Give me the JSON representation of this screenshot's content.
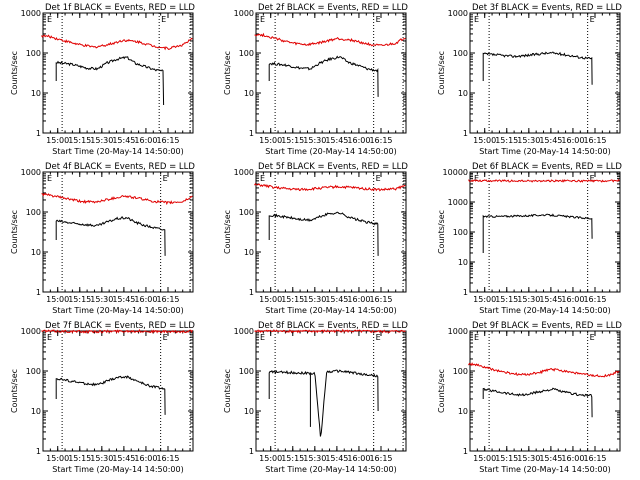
{
  "chart_data": [
    {
      "type": "line",
      "title": "Det 1f BLACK = Events, RED = LLD",
      "xlabel": "Start Time (20-May-14 14:50:00)",
      "ylabel": "Counts/sec",
      "yscale": "log",
      "ylim": [
        1,
        1000
      ],
      "xlim": [
        "14:50",
        "16:32"
      ],
      "x_ticks": [
        "15:00",
        "15:15",
        "15:30",
        "15:45",
        "16:00",
        "16:15"
      ],
      "y_ticks": [
        "1",
        "10",
        "100",
        "1000"
      ],
      "markers": [
        "E",
        "E"
      ],
      "vlines_dotted": [
        "15:03",
        "16:09",
        "16:30"
      ],
      "colors": {
        "events": "#000000",
        "lld": "#e00000"
      },
      "series": [
        {
          "name": "BLACK = Events",
          "color": "#000000",
          "x": [
            "14:59",
            "15:10",
            "15:20",
            "15:27",
            "15:33",
            "15:40",
            "15:47",
            "15:53",
            "16:00",
            "16:06",
            "16:12"
          ],
          "values": [
            58,
            52,
            42,
            40,
            55,
            70,
            78,
            55,
            45,
            38,
            35
          ],
          "dropout": {
            "x": "16:12",
            "value": 5
          }
        },
        {
          "name": "RED = LLD",
          "color": "#e00000",
          "x": [
            "14:49",
            "14:55",
            "15:05",
            "15:15",
            "15:25",
            "15:35",
            "15:45",
            "15:55",
            "16:05",
            "16:15",
            "16:25",
            "16:32"
          ],
          "values": [
            270,
            255,
            200,
            160,
            140,
            165,
            210,
            190,
            150,
            130,
            160,
            230
          ]
        }
      ]
    },
    {
      "type": "line",
      "title": "Det 2f BLACK = Events, RED = LLD",
      "xlabel": "Start Time (20-May-14 14:50:00)",
      "ylabel": "Counts/sec",
      "yscale": "log",
      "ylim": [
        1,
        1000
      ],
      "xlim": [
        "14:50",
        "16:32"
      ],
      "x_ticks": [
        "15:00",
        "15:15",
        "15:30",
        "15:45",
        "16:00",
        "16:15"
      ],
      "y_ticks": [
        "1",
        "10",
        "100",
        "1000"
      ],
      "markers": [
        "E",
        "E"
      ],
      "vlines_dotted": [
        "15:03",
        "16:10",
        "16:30"
      ],
      "colors": {
        "events": "#000000",
        "lld": "#e00000"
      },
      "series": [
        {
          "name": "BLACK = Events",
          "color": "#000000",
          "x": [
            "14:59",
            "15:10",
            "15:20",
            "15:27",
            "15:33",
            "15:40",
            "15:47",
            "15:53",
            "16:00",
            "16:06",
            "16:13"
          ],
          "values": [
            55,
            50,
            42,
            40,
            55,
            70,
            80,
            58,
            48,
            40,
            36
          ],
          "dropout": {
            "x": "16:13",
            "value": 8
          }
        },
        {
          "name": "RED = LLD",
          "color": "#e00000",
          "x": [
            "14:49",
            "14:55",
            "15:05",
            "15:15",
            "15:25",
            "15:35",
            "15:45",
            "15:55",
            "16:05",
            "16:15",
            "16:25",
            "16:32"
          ],
          "values": [
            290,
            280,
            220,
            175,
            160,
            185,
            230,
            210,
            170,
            150,
            175,
            250
          ]
        }
      ]
    },
    {
      "type": "line",
      "title": "Det 3f BLACK = Events, RED = LLD",
      "xlabel": "Start Time (20-May-14 14:50:00)",
      "ylabel": "Counts/sec",
      "yscale": "log",
      "ylim": [
        1,
        1000
      ],
      "xlim": [
        "14:50",
        "16:32"
      ],
      "x_ticks": [
        "15:00",
        "15:15",
        "15:30",
        "15:45",
        "16:00",
        "16:15"
      ],
      "y_ticks": [
        "1",
        "10",
        "100",
        "1000"
      ],
      "markers": [
        "E",
        "E"
      ],
      "vlines_dotted": [
        "15:03",
        "16:10",
        "16:30"
      ],
      "colors": {
        "events": "#000000",
        "lld": "#e00000"
      },
      "series": [
        {
          "name": "BLACK = Events",
          "color": "#000000",
          "x": [
            "14:59",
            "15:10",
            "15:20",
            "15:30",
            "15:40",
            "15:47",
            "15:55",
            "16:05",
            "16:13"
          ],
          "values": [
            95,
            88,
            82,
            88,
            98,
            100,
            90,
            78,
            72
          ],
          "dropout": {
            "x": "16:13",
            "value": 16
          }
        }
      ]
    },
    {
      "type": "line",
      "title": "Det 4f BLACK = Events, RED = LLD",
      "xlabel": "Start Time (20-May-14 14:50:00)",
      "ylabel": "Counts/sec",
      "yscale": "log",
      "ylim": [
        1,
        1000
      ],
      "xlim": [
        "14:50",
        "16:32"
      ],
      "x_ticks": [
        "15:00",
        "15:15",
        "15:30",
        "15:45",
        "16:00",
        "16:15"
      ],
      "y_ticks": [
        "1",
        "10",
        "100",
        "1000"
      ],
      "markers": [
        "E",
        "E"
      ],
      "vlines_dotted": [
        "15:03",
        "16:10",
        "16:30"
      ],
      "colors": {
        "events": "#000000",
        "lld": "#e00000"
      },
      "series": [
        {
          "name": "BLACK = Events",
          "color": "#000000",
          "x": [
            "14:59",
            "15:10",
            "15:20",
            "15:27",
            "15:33",
            "15:40",
            "15:47",
            "15:53",
            "16:00",
            "16:06",
            "16:13"
          ],
          "values": [
            60,
            52,
            48,
            45,
            55,
            68,
            72,
            55,
            45,
            40,
            35
          ],
          "dropout": {
            "x": "16:13",
            "value": 8
          }
        },
        {
          "name": "RED = LLD",
          "color": "#e00000",
          "x": [
            "14:49",
            "14:55",
            "15:05",
            "15:15",
            "15:25",
            "15:35",
            "15:45",
            "15:55",
            "16:05",
            "16:15",
            "16:25",
            "16:32"
          ],
          "values": [
            280,
            260,
            220,
            185,
            175,
            210,
            250,
            220,
            185,
            170,
            180,
            250
          ]
        }
      ]
    },
    {
      "type": "line",
      "title": "Det 5f BLACK = Events, RED = LLD",
      "xlabel": "Start Time (20-May-14 14:50:00)",
      "ylabel": "Counts/sec",
      "yscale": "log",
      "ylim": [
        1,
        1000
      ],
      "xlim": [
        "14:50",
        "16:32"
      ],
      "x_ticks": [
        "15:00",
        "15:15",
        "15:30",
        "15:45",
        "16:00",
        "16:15"
      ],
      "y_ticks": [
        "1",
        "10",
        "100",
        "1000"
      ],
      "markers": [
        "E",
        "E"
      ],
      "vlines_dotted": [
        "15:03",
        "16:10",
        "16:30"
      ],
      "colors": {
        "events": "#000000",
        "lld": "#e00000"
      },
      "series": [
        {
          "name": "BLACK = Events",
          "color": "#000000",
          "x": [
            "14:59",
            "15:10",
            "15:20",
            "15:27",
            "15:33",
            "15:40",
            "15:47",
            "15:53",
            "16:00",
            "16:06",
            "16:13"
          ],
          "values": [
            85,
            75,
            65,
            62,
            75,
            92,
            95,
            75,
            62,
            55,
            50
          ],
          "dropout": {
            "x": "16:13",
            "value": 8
          }
        },
        {
          "name": "RED = LLD",
          "color": "#e00000",
          "x": [
            "14:49",
            "14:55",
            "15:05",
            "15:15",
            "15:25",
            "15:35",
            "15:45",
            "15:55",
            "16:05",
            "16:15",
            "16:25",
            "16:32"
          ],
          "values": [
            480,
            460,
            400,
            370,
            370,
            400,
            430,
            410,
            380,
            360,
            380,
            460
          ]
        }
      ]
    },
    {
      "type": "line",
      "title": "Det 6f BLACK = Events, RED = LLD",
      "xlabel": "Start Time (20-May-14 14:50:00)",
      "ylabel": "Counts/sec",
      "yscale": "log",
      "ylim": [
        1,
        10000
      ],
      "xlim": [
        "14:50",
        "16:32"
      ],
      "x_ticks": [
        "15:00",
        "15:15",
        "15:30",
        "15:45",
        "16:00",
        "16:15"
      ],
      "y_ticks": [
        "1",
        "10",
        "100",
        "1000",
        "10000"
      ],
      "markers": [
        "E",
        "E"
      ],
      "vlines_dotted": [
        "15:03",
        "16:10"
      ],
      "colors": {
        "events": "#000000",
        "lld": "#e00000"
      },
      "series": [
        {
          "name": "BLACK = Events",
          "color": "#000000",
          "x": [
            "14:59",
            "15:10",
            "15:20",
            "15:30",
            "15:40",
            "15:47",
            "15:55",
            "16:05",
            "16:13"
          ],
          "values": [
            330,
            330,
            340,
            350,
            370,
            360,
            330,
            300,
            280
          ],
          "dropout": {
            "x": "16:13",
            "value": 60
          }
        },
        {
          "name": "RED = LLD",
          "color": "#e00000",
          "x": [
            "14:49",
            "15:05",
            "15:20",
            "15:35",
            "15:50",
            "16:05",
            "16:20",
            "16:32"
          ],
          "values": [
            5200,
            5100,
            5000,
            5000,
            5100,
            5000,
            5000,
            5200
          ]
        }
      ]
    },
    {
      "type": "line",
      "title": "Det 7f BLACK = Events, RED = LLD",
      "xlabel": "Start Time (20-May-14 14:50:00)",
      "ylabel": "Counts/sec",
      "yscale": "log",
      "ylim": [
        1,
        1000
      ],
      "xlim": [
        "14:50",
        "16:32"
      ],
      "x_ticks": [
        "15:00",
        "15:15",
        "15:30",
        "15:45",
        "16:00",
        "16:15"
      ],
      "y_ticks": [
        "1",
        "10",
        "100",
        "1000"
      ],
      "markers": [
        "E",
        "E"
      ],
      "vlines_dotted": [
        "15:03",
        "16:10",
        "16:30"
      ],
      "colors": {
        "events": "#000000",
        "lld": "#e00000"
      },
      "series": [
        {
          "name": "BLACK = Events",
          "color": "#000000",
          "x": [
            "14:59",
            "15:10",
            "15:20",
            "15:27",
            "15:33",
            "15:40",
            "15:47",
            "15:53",
            "16:00",
            "16:06",
            "16:13"
          ],
          "values": [
            65,
            55,
            48,
            45,
            55,
            68,
            72,
            58,
            45,
            40,
            36
          ],
          "dropout": {
            "x": "16:13",
            "value": 8
          }
        },
        {
          "name": "RED = LLD",
          "color": "#e00000",
          "x": [
            "14:49",
            "15:05",
            "15:20",
            "15:35",
            "15:50",
            "16:05",
            "16:20",
            "16:32"
          ],
          "values": [
            1000,
            980,
            960,
            980,
            1000,
            970,
            950,
            1000
          ]
        }
      ]
    },
    {
      "type": "line",
      "title": "Det 8f BLACK = Events, RED = LLD",
      "xlabel": "Start Time (20-May-14 14:50:00)",
      "ylabel": "Counts/sec",
      "yscale": "log",
      "ylim": [
        1,
        1000
      ],
      "xlim": [
        "14:50",
        "16:32"
      ],
      "x_ticks": [
        "15:00",
        "15:15",
        "15:30",
        "15:45",
        "16:00",
        "16:15"
      ],
      "y_ticks": [
        "1",
        "10",
        "100",
        "1000"
      ],
      "markers": [
        "E",
        "E"
      ],
      "vlines_dotted": [
        "15:03",
        "16:10",
        "16:30"
      ],
      "colors": {
        "events": "#000000",
        "lld": "#e00000"
      },
      "series": [
        {
          "name": "BLACK = Events",
          "color": "#000000",
          "x": [
            "14:59",
            "15:10",
            "15:20",
            "15:26",
            "15:30",
            "15:34",
            "15:38",
            "15:45",
            "15:53",
            "16:00",
            "16:06",
            "16:13"
          ],
          "values": [
            95,
            92,
            90,
            88,
            86,
            2,
            95,
            100,
            95,
            85,
            80,
            75
          ],
          "dropout": {
            "x": "16:13",
            "value": 10
          },
          "spike": {
            "x": "15:27",
            "value": 4
          }
        },
        {
          "name": "RED = LLD",
          "color": "#e00000",
          "x": [
            "14:49",
            "15:05",
            "15:20",
            "15:35",
            "15:50",
            "16:05",
            "16:20",
            "16:32"
          ],
          "values": [
            1000,
            990,
            980,
            990,
            1000,
            980,
            970,
            1000
          ]
        }
      ]
    },
    {
      "type": "line",
      "title": "Det 9f BLACK = Events, RED = LLD",
      "xlabel": "Start Time (20-May-14 14:50:00)",
      "ylabel": "Counts/sec",
      "yscale": "log",
      "ylim": [
        1,
        1000
      ],
      "xlim": [
        "14:50",
        "16:32"
      ],
      "x_ticks": [
        "15:00",
        "15:15",
        "15:30",
        "15:45",
        "16:00",
        "16:15"
      ],
      "y_ticks": [
        "1",
        "10",
        "100",
        "1000"
      ],
      "markers": [
        "E",
        "E"
      ],
      "vlines_dotted": [
        "15:03",
        "16:10"
      ],
      "colors": {
        "events": "#000000",
        "lld": "#e00000"
      },
      "series": [
        {
          "name": "BLACK = Events",
          "color": "#000000",
          "x": [
            "14:59",
            "15:10",
            "15:20",
            "15:27",
            "15:33",
            "15:40",
            "15:47",
            "15:53",
            "16:00",
            "16:06",
            "16:13"
          ],
          "values": [
            35,
            30,
            26,
            25,
            28,
            32,
            35,
            30,
            27,
            25,
            24
          ],
          "dropout": {
            "x": "16:13",
            "value": 7
          }
        },
        {
          "name": "RED = LLD",
          "color": "#e00000",
          "x": [
            "14:49",
            "14:55",
            "15:05",
            "15:15",
            "15:25",
            "15:35",
            "15:45",
            "15:55",
            "16:05",
            "16:15",
            "16:25",
            "16:32"
          ],
          "values": [
            150,
            140,
            110,
            90,
            80,
            88,
            110,
            100,
            85,
            75,
            78,
            100
          ]
        }
      ]
    }
  ]
}
